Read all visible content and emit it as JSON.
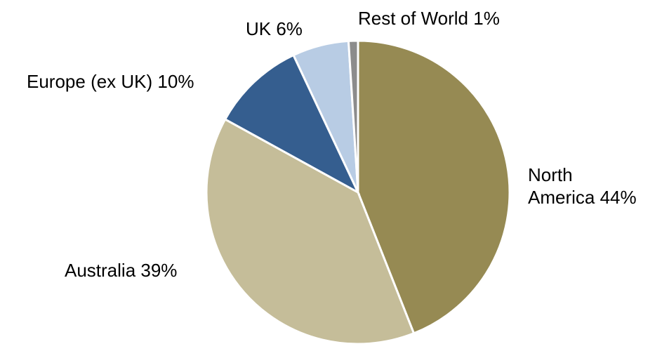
{
  "chart_data": {
    "type": "pie",
    "title": "",
    "legend": "none",
    "slices": [
      {
        "label": "North America",
        "value": 44,
        "text_lines": [
          "North",
          "America 44%"
        ],
        "color": "#968A53"
      },
      {
        "label": "Australia",
        "value": 39,
        "text_lines": [
          "Australia 39%"
        ],
        "color": "#C5BD99"
      },
      {
        "label": "Europe (ex UK)",
        "value": 10,
        "text_lines": [
          "Europe (ex UK) 10%"
        ],
        "color": "#355E8F"
      },
      {
        "label": "UK",
        "value": 6,
        "text_lines": [
          "UK 6%"
        ],
        "color": "#B8CCE4"
      },
      {
        "label": "Rest of World",
        "value": 1,
        "text_lines": [
          "Rest of World 1%"
        ],
        "color": "#8C8C8C"
      }
    ]
  }
}
